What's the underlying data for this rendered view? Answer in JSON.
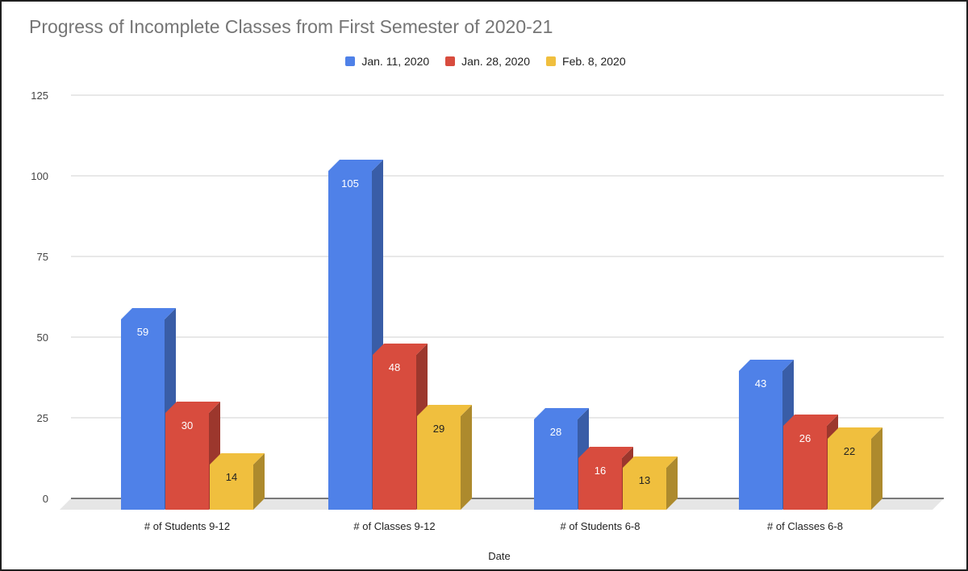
{
  "chart_data": {
    "type": "bar",
    "title": "Progress of Incomplete Classes from First Semester of 2020-21",
    "xlabel": "Date",
    "ylabel": "",
    "ylim": [
      0,
      125
    ],
    "yticks": [
      0,
      25,
      50,
      75,
      100,
      125
    ],
    "grid": true,
    "legend_position": "top",
    "style": "3d-column",
    "categories": [
      "# of Students 9-12",
      "# of Classes 9-12",
      "# of Students 6-8",
      "# of Classes 6-8"
    ],
    "series": [
      {
        "name": "Jan. 11, 2020",
        "color": "#4f81e8",
        "values": [
          59,
          105,
          28,
          43
        ]
      },
      {
        "name": "Jan. 28, 2020",
        "color": "#d84c3e",
        "values": [
          30,
          48,
          16,
          26
        ]
      },
      {
        "name": "Feb. 8, 2020",
        "color": "#f0bf3e",
        "values": [
          14,
          29,
          13,
          22
        ]
      }
    ]
  }
}
